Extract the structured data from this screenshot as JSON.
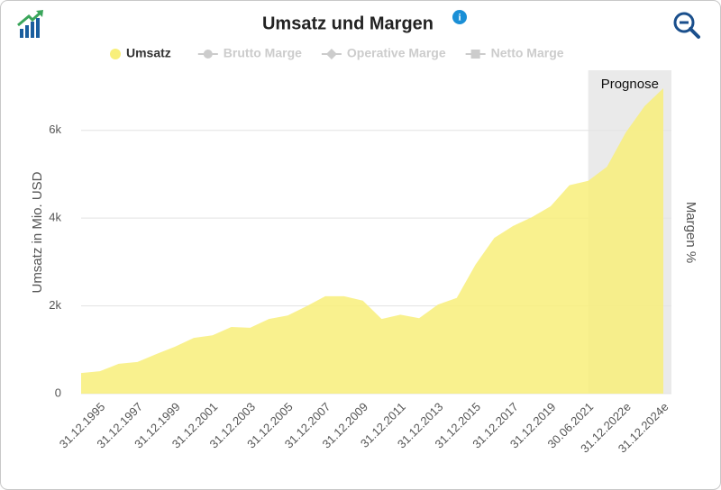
{
  "chart_data": {
    "type": "area",
    "title": "Umsatz und Margen",
    "ylabel": "Umsatz in Mio. USD",
    "y2label": "Margen %",
    "categories": [
      null,
      "31.12.1995",
      null,
      "31.12.1997",
      null,
      "31.12.1999",
      null,
      "31.12.2001",
      null,
      "31.12.2003",
      null,
      "31.12.2005",
      null,
      "31.12.2007",
      null,
      "31.12.2009",
      null,
      "31.12.2011",
      null,
      "31.12.2013",
      null,
      "31.12.2015",
      null,
      "31.12.2017",
      null,
      "31.12.2019",
      null,
      "30.06.2021",
      null,
      "31.12.2022e",
      null,
      "31.12.2024e"
    ],
    "series": [
      {
        "name": "Umsatz",
        "color": "#f8ef7a",
        "values": [
          470,
          510,
          680,
          720,
          900,
          1070,
          1270,
          1330,
          1520,
          1500,
          1700,
          1780,
          1990,
          2220,
          2220,
          2120,
          1700,
          1800,
          1720,
          2030,
          2180,
          2940,
          3550,
          3820,
          4020,
          4270,
          4750,
          4850,
          5170,
          5950,
          6550,
          6960
        ]
      }
    ],
    "inactive_series": [
      "Brutto Marge",
      "Operative Marge",
      "Netto Marge"
    ],
    "forecast": {
      "label": "Prognose",
      "from": 27
    },
    "ylim": [
      0,
      7000
    ],
    "yticks": [
      0,
      {
        "value": 2000,
        "label": "2k"
      },
      {
        "value": 4000,
        "label": "4k"
      },
      {
        "value": 6000,
        "label": "6k"
      }
    ],
    "grid": true
  }
}
